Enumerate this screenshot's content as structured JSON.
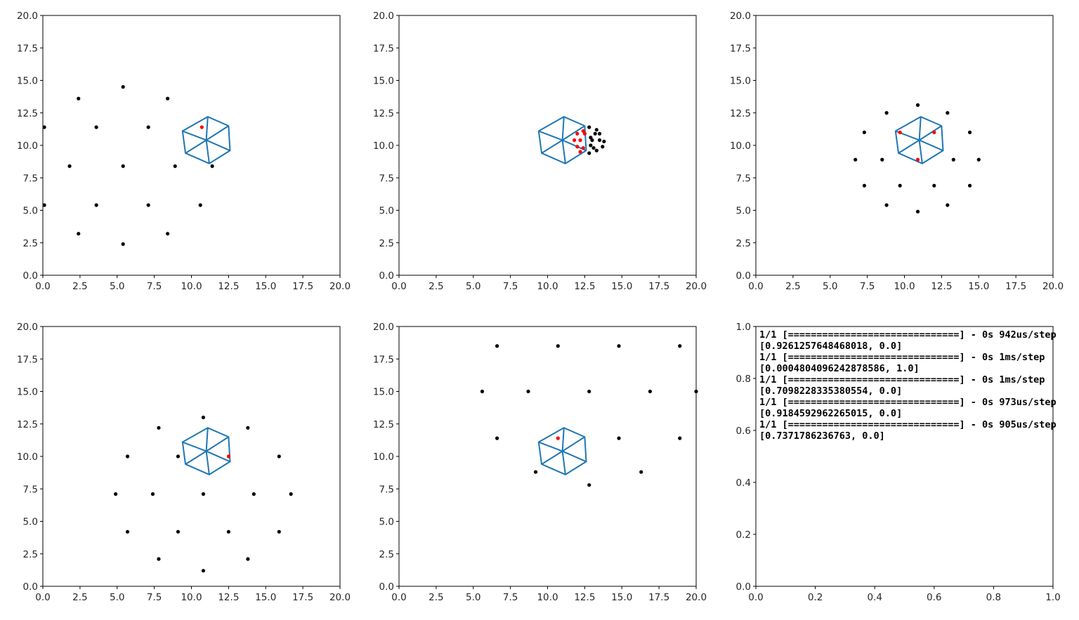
{
  "colors": {
    "hexagon": "#1f77b4",
    "black_point": "#000000",
    "red_point": "#ff0000",
    "axes": "#000000"
  },
  "chart_data": [
    {
      "type": "scatter",
      "xlim": [
        0,
        20
      ],
      "ylim": [
        0,
        20
      ],
      "xticks": [
        "0.0",
        "2.5",
        "5.0",
        "7.5",
        "10.0",
        "12.5",
        "15.0",
        "17.5",
        "20.0"
      ],
      "yticks": [
        "0.0",
        "2.5",
        "5.0",
        "7.5",
        "10.0",
        "12.5",
        "15.0",
        "17.5",
        "20.0"
      ],
      "hexagon": [
        [
          11.1,
          12.2
        ],
        [
          12.5,
          11.5
        ],
        [
          12.6,
          9.6
        ],
        [
          11.2,
          8.6
        ],
        [
          9.6,
          9.4
        ],
        [
          9.4,
          11.1
        ]
      ],
      "hexagon_center": [
        11.0,
        10.4
      ],
      "black_points": [
        [
          0.1,
          11.4
        ],
        [
          2.4,
          13.6
        ],
        [
          5.4,
          14.5
        ],
        [
          8.4,
          13.6
        ],
        [
          3.6,
          11.4
        ],
        [
          7.1,
          11.4
        ],
        [
          1.8,
          8.4
        ],
        [
          5.4,
          8.4
        ],
        [
          8.9,
          8.4
        ],
        [
          11.4,
          8.4
        ],
        [
          0.1,
          5.4
        ],
        [
          3.6,
          5.4
        ],
        [
          7.1,
          5.4
        ],
        [
          10.6,
          5.4
        ],
        [
          2.4,
          3.2
        ],
        [
          8.4,
          3.2
        ],
        [
          5.4,
          2.4
        ]
      ],
      "red_points": [
        [
          10.7,
          11.4
        ]
      ]
    },
    {
      "type": "scatter",
      "xlim": [
        0,
        20
      ],
      "ylim": [
        0,
        20
      ],
      "xticks": [
        "0.0",
        "2.5",
        "5.0",
        "7.5",
        "10.0",
        "12.5",
        "15.0",
        "17.5",
        "20.0"
      ],
      "yticks": [
        "0.0",
        "2.5",
        "5.0",
        "7.5",
        "10.0",
        "12.5",
        "15.0",
        "17.5",
        "20.0"
      ],
      "hexagon": [
        [
          11.1,
          12.2
        ],
        [
          12.5,
          11.5
        ],
        [
          12.6,
          9.6
        ],
        [
          11.2,
          8.6
        ],
        [
          9.6,
          9.4
        ],
        [
          9.4,
          11.1
        ]
      ],
      "hexagon_center": [
        11.0,
        10.4
      ],
      "black_points": [
        [
          12.8,
          11.4
        ],
        [
          13.3,
          11.2
        ],
        [
          13.5,
          10.9
        ],
        [
          12.9,
          10.6
        ],
        [
          13.2,
          10.9
        ],
        [
          12.9,
          10.0
        ],
        [
          13.8,
          10.3
        ],
        [
          13.5,
          10.4
        ],
        [
          13.1,
          9.8
        ],
        [
          13.7,
          9.9
        ],
        [
          12.8,
          9.4
        ],
        [
          13.3,
          9.6
        ],
        [
          13.0,
          10.4
        ]
      ],
      "red_points": [
        [
          12.0,
          10.9
        ],
        [
          12.4,
          11.1
        ],
        [
          11.8,
          10.4
        ],
        [
          12.2,
          10.4
        ],
        [
          12.0,
          9.9
        ],
        [
          12.4,
          9.8
        ],
        [
          12.2,
          9.5
        ],
        [
          12.5,
          10.9
        ]
      ]
    },
    {
      "type": "scatter",
      "xlim": [
        0,
        20
      ],
      "ylim": [
        0,
        20
      ],
      "xticks": [
        "0.0",
        "2.5",
        "5.0",
        "7.5",
        "10.0",
        "12.5",
        "15.0",
        "17.5",
        "20.0"
      ],
      "yticks": [
        "0.0",
        "2.5",
        "5.0",
        "7.5",
        "10.0",
        "12.5",
        "15.0",
        "17.5",
        "20.0"
      ],
      "hexagon": [
        [
          11.1,
          12.2
        ],
        [
          12.5,
          11.5
        ],
        [
          12.6,
          9.6
        ],
        [
          11.2,
          8.6
        ],
        [
          9.6,
          9.4
        ],
        [
          9.4,
          11.1
        ]
      ],
      "hexagon_center": [
        11.0,
        10.4
      ],
      "black_points": [
        [
          10.9,
          13.1
        ],
        [
          8.8,
          12.5
        ],
        [
          12.9,
          12.5
        ],
        [
          7.3,
          11.0
        ],
        [
          14.4,
          11.0
        ],
        [
          6.7,
          8.9
        ],
        [
          8.5,
          8.9
        ],
        [
          13.3,
          8.9
        ],
        [
          15.0,
          8.9
        ],
        [
          7.3,
          6.9
        ],
        [
          9.7,
          6.9
        ],
        [
          12.0,
          6.9
        ],
        [
          14.4,
          6.9
        ],
        [
          8.8,
          5.4
        ],
        [
          12.9,
          5.4
        ],
        [
          10.9,
          4.9
        ]
      ],
      "red_points": [
        [
          9.7,
          11.0
        ],
        [
          12.0,
          11.0
        ],
        [
          10.9,
          8.9
        ]
      ]
    },
    {
      "type": "scatter",
      "xlim": [
        0,
        20
      ],
      "ylim": [
        0,
        20
      ],
      "xticks": [
        "0.0",
        "2.5",
        "5.0",
        "7.5",
        "10.0",
        "12.5",
        "15.0",
        "17.5",
        "20.0"
      ],
      "yticks": [
        "0.0",
        "2.5",
        "5.0",
        "7.5",
        "10.0",
        "12.5",
        "15.0",
        "17.5",
        "20.0"
      ],
      "hexagon": [
        [
          11.1,
          12.2
        ],
        [
          12.5,
          11.5
        ],
        [
          12.6,
          9.6
        ],
        [
          11.2,
          8.6
        ],
        [
          9.6,
          9.4
        ],
        [
          9.4,
          11.1
        ]
      ],
      "hexagon_center": [
        11.0,
        10.4
      ],
      "black_points": [
        [
          10.8,
          13.0
        ],
        [
          7.8,
          12.2
        ],
        [
          13.8,
          12.2
        ],
        [
          5.7,
          10.0
        ],
        [
          9.1,
          10.0
        ],
        [
          15.9,
          10.0
        ],
        [
          4.9,
          7.1
        ],
        [
          7.4,
          7.1
        ],
        [
          10.8,
          7.1
        ],
        [
          14.2,
          7.1
        ],
        [
          16.7,
          7.1
        ],
        [
          5.7,
          4.2
        ],
        [
          9.1,
          4.2
        ],
        [
          12.5,
          4.2
        ],
        [
          15.9,
          4.2
        ],
        [
          7.8,
          2.1
        ],
        [
          13.8,
          2.1
        ],
        [
          10.8,
          1.2
        ]
      ],
      "red_points": [
        [
          12.5,
          10.0
        ]
      ]
    },
    {
      "type": "scatter",
      "xlim": [
        0,
        20
      ],
      "ylim": [
        0,
        20
      ],
      "xticks": [
        "0.0",
        "2.5",
        "5.0",
        "7.5",
        "10.0",
        "12.5",
        "15.0",
        "17.5",
        "20.0"
      ],
      "yticks": [
        "0.0",
        "2.5",
        "5.0",
        "7.5",
        "10.0",
        "12.5",
        "15.0",
        "17.5",
        "20.0"
      ],
      "hexagon": [
        [
          11.1,
          12.2
        ],
        [
          12.5,
          11.5
        ],
        [
          12.6,
          9.6
        ],
        [
          11.2,
          8.6
        ],
        [
          9.6,
          9.4
        ],
        [
          9.4,
          11.1
        ]
      ],
      "hexagon_center": [
        11.0,
        10.4
      ],
      "black_points": [
        [
          6.6,
          18.5
        ],
        [
          10.7,
          18.5
        ],
        [
          14.8,
          18.5
        ],
        [
          18.9,
          18.5
        ],
        [
          5.6,
          15.0
        ],
        [
          8.7,
          15.0
        ],
        [
          12.8,
          15.0
        ],
        [
          16.9,
          15.0
        ],
        [
          20.0,
          15.0
        ],
        [
          6.6,
          11.4
        ],
        [
          14.8,
          11.4
        ],
        [
          18.9,
          11.4
        ],
        [
          9.2,
          8.8
        ],
        [
          16.3,
          8.8
        ],
        [
          12.8,
          7.8
        ]
      ],
      "red_points": [
        [
          10.7,
          11.4
        ]
      ]
    },
    {
      "type": "table",
      "xlim": [
        0,
        1
      ],
      "ylim": [
        0,
        1
      ],
      "xticks": [
        "0.0",
        "0.2",
        "0.4",
        "0.6",
        "0.8",
        "1.0"
      ],
      "yticks": [
        "0.0",
        "0.2",
        "0.4",
        "0.6",
        "0.8",
        "1.0"
      ],
      "text_lines": [
        "1/1 [==============================] - 0s 942us/step",
        "[0.9261257648468018, 0.0]",
        "1/1 [==============================] - 0s 1ms/step",
        "[0.0004804096242878586, 1.0]",
        "1/1 [==============================] - 0s 1ms/step",
        "[0.7098228335380554, 0.0]",
        "1/1 [==============================] - 0s 973us/step",
        "[0.9184592962265015, 0.0]",
        "1/1 [==============================] - 0s 905us/step",
        "[0.7371786236763, 0.0]"
      ]
    }
  ]
}
